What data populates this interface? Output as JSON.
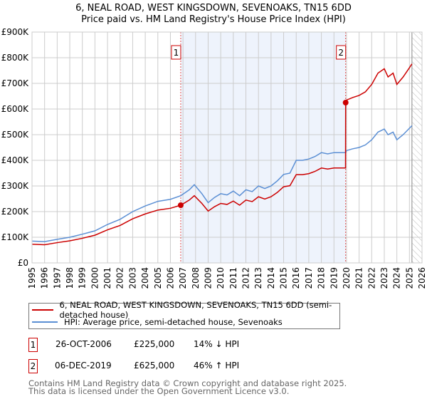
{
  "title": "6, NEAL ROAD, WEST KINGSDOWN, SEVENOAKS, TN15 6DD",
  "subtitle": "Price paid vs. HM Land Registry's House Price Index (HPI)",
  "chart_data": {
    "type": "line",
    "title": "6, NEAL ROAD, WEST KINGSDOWN, SEVENOAKS, TN15 6DD — Price paid vs. HM Land Registry's House Price Index (HPI)",
    "xlim": [
      1995,
      2026
    ],
    "ylim": [
      0,
      900000
    ],
    "yticks": [
      {
        "v": 0,
        "label": "£0"
      },
      {
        "v": 100000,
        "label": "£100K"
      },
      {
        "v": 200000,
        "label": "£200K"
      },
      {
        "v": 300000,
        "label": "£300K"
      },
      {
        "v": 400000,
        "label": "£400K"
      },
      {
        "v": 500000,
        "label": "£500K"
      },
      {
        "v": 600000,
        "label": "£600K"
      },
      {
        "v": 700000,
        "label": "£700K"
      },
      {
        "v": 800000,
        "label": "£800K"
      },
      {
        "v": 900000,
        "label": "£900K"
      }
    ],
    "xticks": [
      "1995",
      "1996",
      "1997",
      "1998",
      "1999",
      "2000",
      "2001",
      "2002",
      "2003",
      "2004",
      "2005",
      "2006",
      "2007",
      "2008",
      "2009",
      "2010",
      "2011",
      "2012",
      "2013",
      "2014",
      "2015",
      "2016",
      "2017",
      "2018",
      "2019",
      "2020",
      "2021",
      "2022",
      "2023",
      "2024",
      "2025",
      "2026"
    ],
    "grid": true,
    "colors": {
      "price": "#cc0000",
      "hpi": "#5b8fd4",
      "shade": "#eef3fc"
    },
    "series": [
      {
        "name": "6, NEAL ROAD, WEST KINGSDOWN, SEVENOAKS, TN15 6DD (semi-detached house)",
        "key": "price",
        "x": [
          1995,
          1996,
          1997,
          1998,
          1999,
          2000,
          2001,
          2002,
          2003,
          2004,
          2005,
          2006,
          2006.82,
          2007.5,
          2007.9,
          2008.5,
          2009,
          2009.5,
          2010,
          2010.5,
          2011,
          2011.5,
          2012,
          2012.5,
          2013,
          2013.5,
          2014,
          2014.5,
          2015,
          2015.5,
          2016,
          2016.5,
          2017,
          2017.5,
          2018,
          2018.5,
          2019,
          2019.92,
          2019.93,
          2020,
          2020.5,
          2021,
          2021.5,
          2022,
          2022.5,
          2023,
          2023.3,
          2023.7,
          2024,
          2024.5,
          2025,
          2025.2
        ],
        "y": [
          73000,
          71000,
          79000,
          86000,
          96000,
          108000,
          129000,
          146000,
          172000,
          191000,
          206000,
          213000,
          225000,
          245000,
          262000,
          232000,
          202000,
          219000,
          232000,
          228000,
          241000,
          225000,
          245000,
          239000,
          258000,
          249000,
          258000,
          275000,
          297000,
          301000,
          344000,
          344000,
          348000,
          357000,
          370000,
          366000,
          370000,
          370000,
          625000,
          635000,
          645000,
          653000,
          667000,
          696000,
          740000,
          757000,
          725000,
          740000,
          696000,
          725000,
          761000,
          776000
        ]
      },
      {
        "name": "HPI: Average price, semi-detached house, Sevenoaks",
        "key": "hpi",
        "x": [
          1995,
          1996,
          1997,
          1998,
          1999,
          2000,
          2001,
          2002,
          2003,
          2004,
          2005,
          2006,
          2006.82,
          2007.5,
          2007.9,
          2008.5,
          2009,
          2009.5,
          2010,
          2010.5,
          2011,
          2011.5,
          2012,
          2012.5,
          2013,
          2013.5,
          2014,
          2014.5,
          2015,
          2015.5,
          2016,
          2016.5,
          2017,
          2017.5,
          2018,
          2018.5,
          2019,
          2019.92,
          2020,
          2020.5,
          2021,
          2021.5,
          2022,
          2022.5,
          2023,
          2023.3,
          2023.7,
          2024,
          2024.5,
          2025,
          2025.2
        ],
        "y": [
          85000,
          83000,
          92000,
          100000,
          112000,
          125000,
          150000,
          170000,
          200000,
          222000,
          240000,
          248000,
          262000,
          285000,
          305000,
          270000,
          235000,
          255000,
          270000,
          265000,
          280000,
          262000,
          285000,
          278000,
          300000,
          290000,
          300000,
          320000,
          345000,
          350000,
          400000,
          400000,
          405000,
          415000,
          430000,
          425000,
          430000,
          430000,
          438000,
          445000,
          450000,
          460000,
          480000,
          510000,
          522000,
          500000,
          510000,
          480000,
          500000,
          525000,
          535000
        ]
      }
    ],
    "sales": [
      {
        "label": "1",
        "x": 2006.82,
        "y": 225000
      },
      {
        "label": "2",
        "x": 2019.93,
        "y": 625000
      }
    ],
    "data_end": 2025.2
  },
  "table": [
    {
      "num": "1",
      "date": "26-OCT-2006",
      "price": "£225,000",
      "hpi": "14% ↓ HPI"
    },
    {
      "num": "2",
      "date": "06-DEC-2019",
      "price": "£625,000",
      "hpi": "46% ↑ HPI"
    }
  ],
  "footer": [
    "Contains HM Land Registry data © Crown copyright and database right 2025.",
    "This data is licensed under the Open Government Licence v3.0."
  ]
}
